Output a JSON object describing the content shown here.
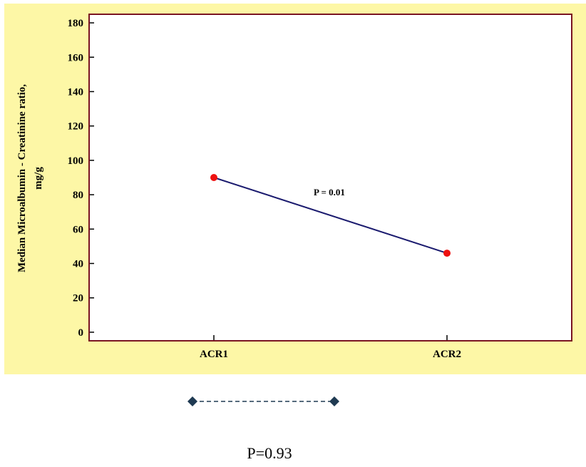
{
  "colors": {
    "panel_bg": "#fdf7a6",
    "plot_bg": "#ffffff",
    "frame": "#7a1420",
    "line": "#1a1a6e",
    "marker": "#ee1111",
    "connector": "#1f3a52"
  },
  "chart_data": {
    "type": "line",
    "title": "",
    "xlabel": "",
    "ylabel_lines": [
      "Median Microalbumin - Creatinine ratio,",
      "mg/g"
    ],
    "categories": [
      "ACR1",
      "ACR2"
    ],
    "series": [
      {
        "values": [
          90,
          46
        ]
      }
    ],
    "ylim": [
      -5,
      185
    ],
    "yticks": [
      0,
      20,
      40,
      60,
      80,
      100,
      120,
      140,
      160,
      180
    ],
    "grid": false,
    "legend": "none",
    "annotations": [
      {
        "text": "P = 0.01"
      }
    ]
  },
  "footer": {
    "p_value": "P=0.93"
  }
}
